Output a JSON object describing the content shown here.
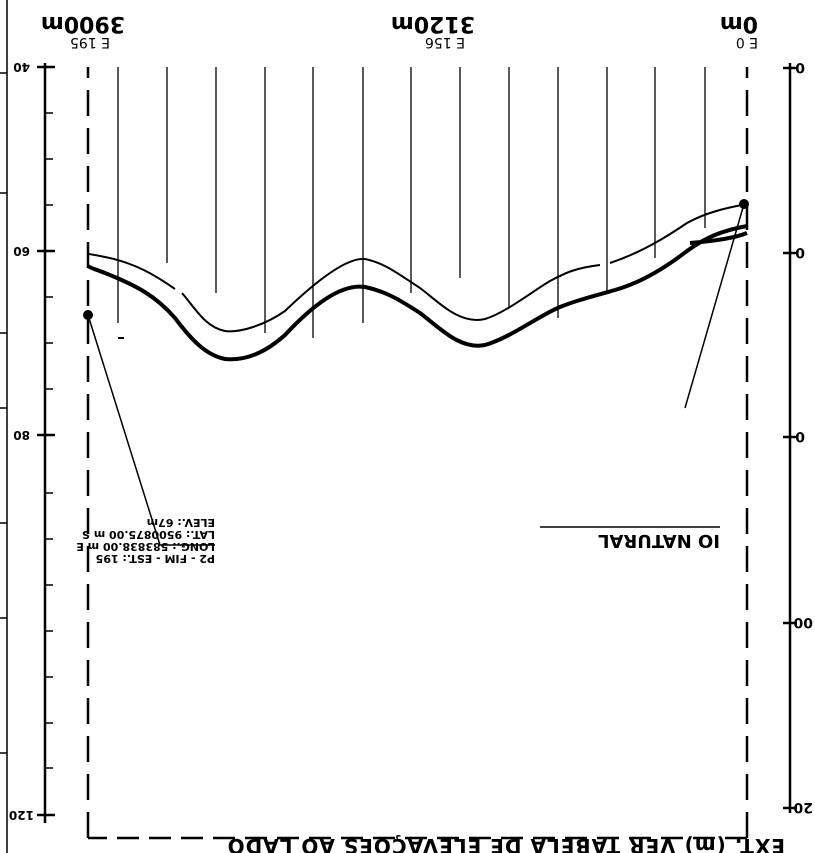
{
  "stations": [
    {
      "distance": "0m",
      "station": "E 0"
    },
    {
      "distance": "3120m",
      "station": "E 156"
    },
    {
      "distance": "3900m",
      "station": "E 195"
    }
  ],
  "left_axis_ticks": [
    "20",
    "00",
    "0",
    "0",
    "0"
  ],
  "right_axis_ticks": [
    "40",
    "60",
    "80",
    "120"
  ],
  "bottom_note": "EXT. (m)  VER TABELA DE ELEVAÇÕES AO LADO",
  "legend_label": "IO NATURAL",
  "point_info": {
    "line1": "P2 - FIM - EST.: 195",
    "line2": "LONG.: 583838.00 m E",
    "line3": "LAT.: 9500875.00 m S",
    "line4": "ELEV.: 67m"
  },
  "colors": {
    "ink": "#000000",
    "paper": "#ffffff"
  }
}
